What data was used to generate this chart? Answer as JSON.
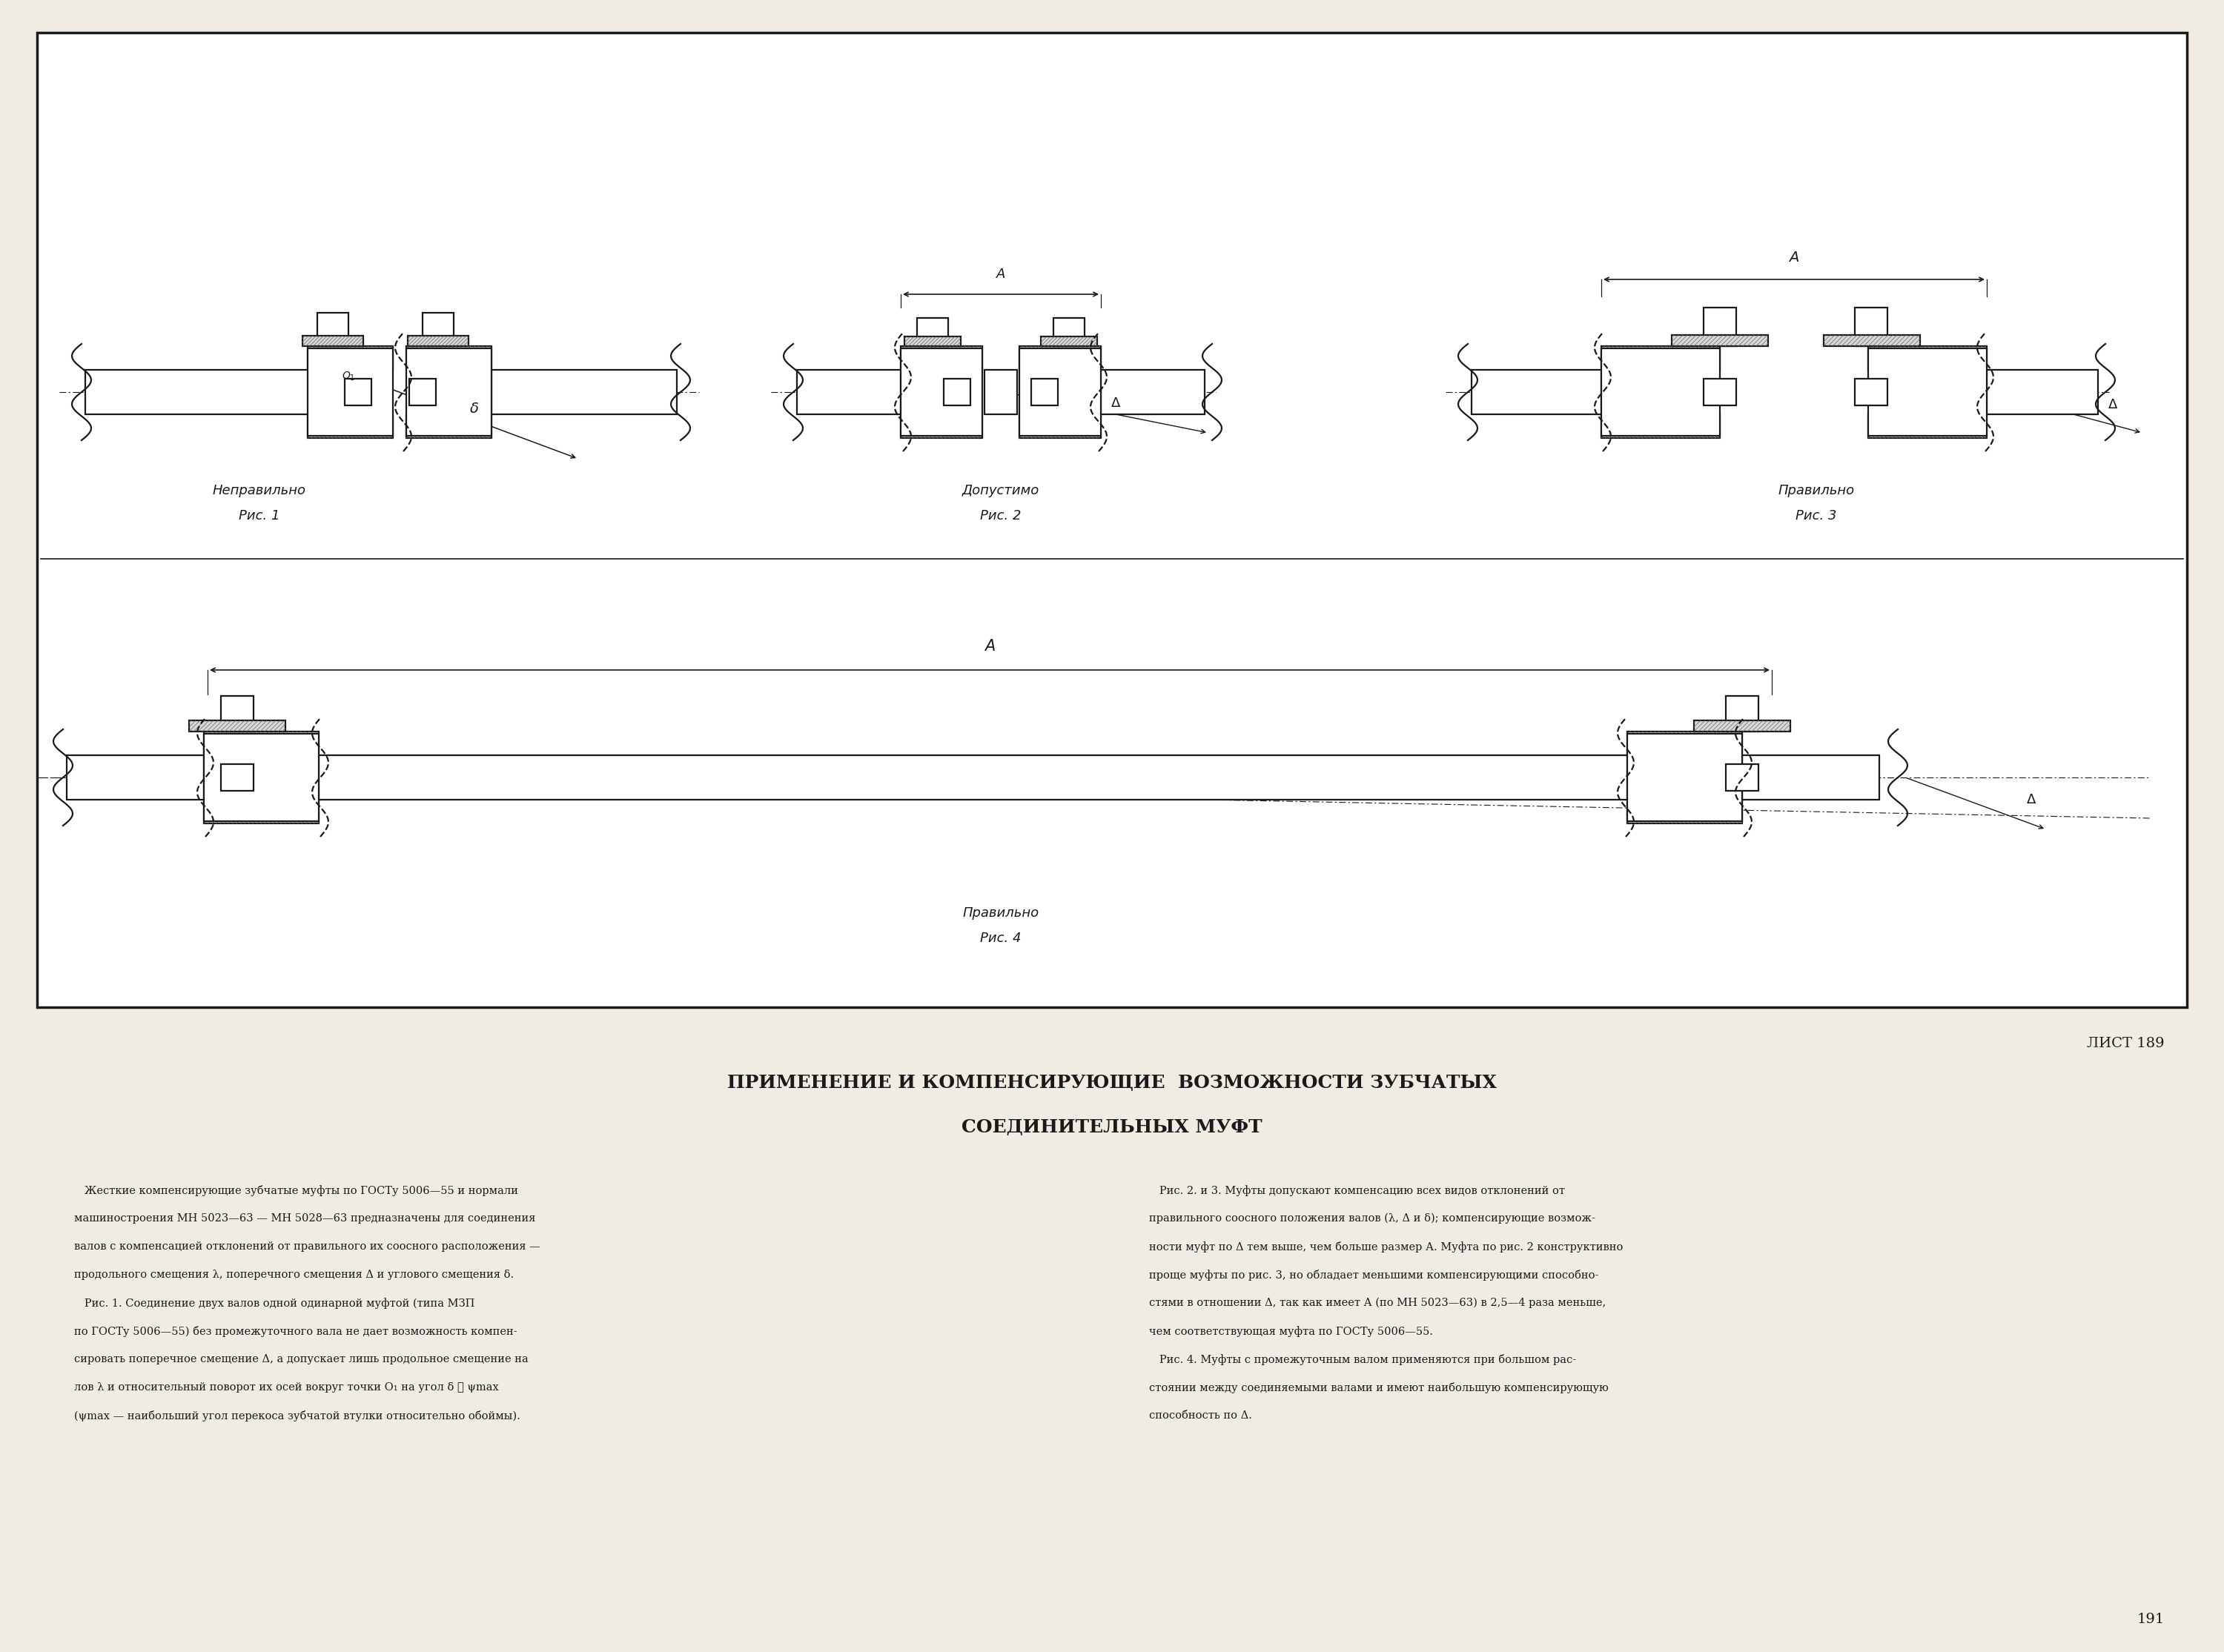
{
  "bg_color": "#f0ece4",
  "box_color": "#1a1a1a",
  "text_color": "#1a1a1a",
  "hatch_color": "#666666",
  "list_num": "ЛИСТ 189",
  "page_num": "191",
  "title_line1": "ПРИМЕНЕНИЕ И КОМПЕНСИРУЮЩИЕ  ВОЗМОЖНОСТИ ЗУБЧАТЫХ",
  "title_line2": "СОЕДИНИТЕЛЬНЫХ МУФТ",
  "fig1_label1": "Неправильно",
  "fig1_label2": "Рис. 1",
  "fig2_label1": "Допустимо",
  "fig2_label2": "Рис. 2",
  "fig3_label1": "Правильно",
  "fig3_label2": "Рис. 3",
  "fig4_label1": "Правильно",
  "fig4_label2": "Рис. 4",
  "left_col_text": [
    "   Жесткие компенсирующие зубчатые муфты по ГОСТу 5006—55 и нормали",
    "машиностроения МН 5023—63 — МН 5028—63 предназначены для соединения",
    "валов с компенсацией отклонений от правильного их соосного расположения —",
    "продольного смещения λ, поперечного смещения Δ и углового смещения δ.",
    "   Рис. 1. Соединение двух валов одной одинарной муфтой (типа МЗП",
    "по ГОСТу 5006—55) без промежуточного вала не дает возможность компен-",
    "сировать поперечное смещение Δ, а допускает лишь продольное смещение на",
    "лов λ и относительный поворот их осей вокруг точки O₁ на угол δ ⩽ ψmax",
    "(ψmax — наибольший угол перекоса зубчатой втулки относительно обоймы)."
  ],
  "right_col_text": [
    "   Рис. 2. и 3. Муфты допускают компенсацию всех видов отклонений от",
    "правильного соосного положения валов (λ, Δ и δ); компенсирующие возмож-",
    "ности муфт по Δ тем выше, чем больше размер А. Муфта по рис. 2 конструктивно",
    "проще муфты по рис. 3, но обладает меньшими компенсирующими способно-",
    "стями в отношении Δ, так как имеет А (по МН 5023—63) в 2,5—4 раза меньше,",
    "чем соответствующая муфта по ГОСТу 5006—55.",
    "   Рис. 4. Муфты с промежуточным валом применяются при большом рас-",
    "стоянии между соединяемыми валами и имеют наибольшую компенсирующую",
    "способность по Δ."
  ]
}
